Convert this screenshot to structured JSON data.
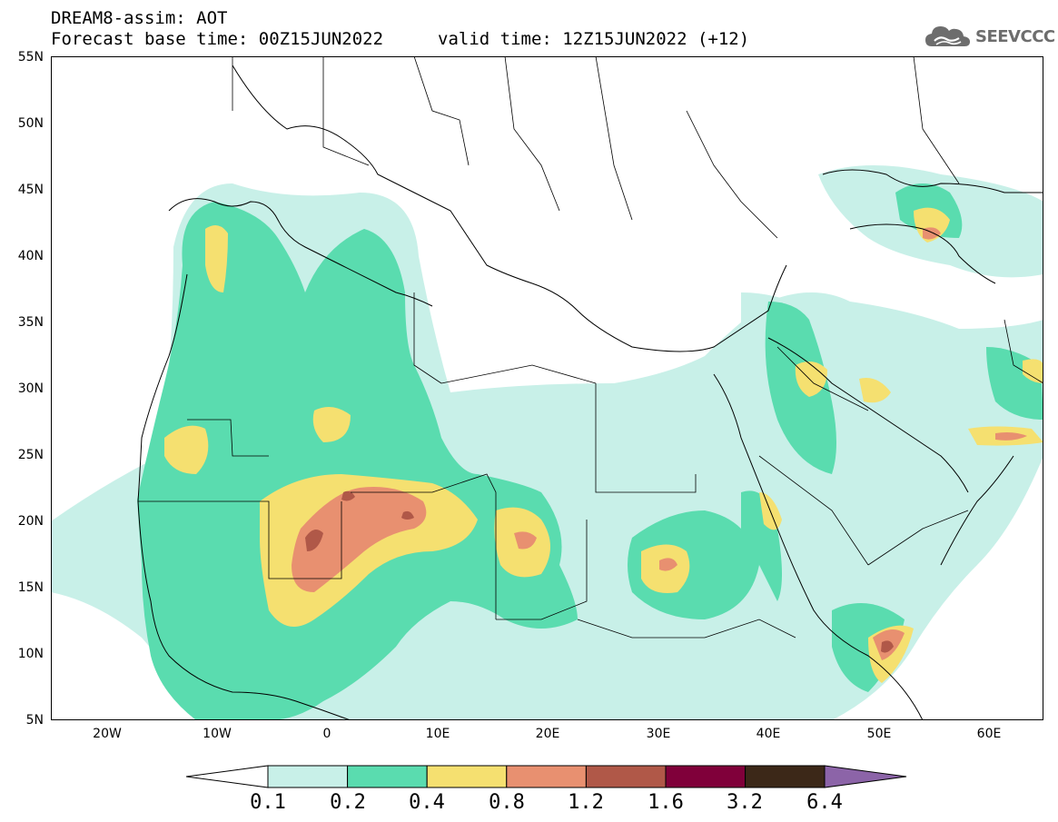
{
  "header": {
    "title": "DREAM8-assim: AOT",
    "base_time": "Forecast base time: 00Z15JUN2022",
    "valid_time": "valid time: 12Z15JUN2022 (+12)"
  },
  "logo": {
    "text": "SEEVCCC",
    "icon": "cloud-logo-icon",
    "color": "#6d6d6d"
  },
  "map": {
    "region": {
      "lon_min": -25,
      "lon_max": 65,
      "lat_min": 5,
      "lat_max": 55
    },
    "lat_ticks": [
      {
        "value": 55,
        "label": "55N"
      },
      {
        "value": 50,
        "label": "50N"
      },
      {
        "value": 45,
        "label": "45N"
      },
      {
        "value": 40,
        "label": "40N"
      },
      {
        "value": 35,
        "label": "35N"
      },
      {
        "value": 30,
        "label": "30N"
      },
      {
        "value": 25,
        "label": "25N"
      },
      {
        "value": 20,
        "label": "20N"
      },
      {
        "value": 15,
        "label": "15N"
      },
      {
        "value": 10,
        "label": "10N"
      },
      {
        "value": 5,
        "label": "5N"
      }
    ],
    "lon_ticks": [
      {
        "value": -20,
        "label": "20W"
      },
      {
        "value": -10,
        "label": "10W"
      },
      {
        "value": 0,
        "label": "0"
      },
      {
        "value": 10,
        "label": "10E"
      },
      {
        "value": 20,
        "label": "20E"
      },
      {
        "value": 30,
        "label": "30E"
      },
      {
        "value": 40,
        "label": "40E"
      },
      {
        "value": 50,
        "label": "50E"
      },
      {
        "value": 60,
        "label": "60E"
      }
    ]
  },
  "colorbar": {
    "labels": [
      "0.1",
      "0.2",
      "0.4",
      "0.8",
      "1.2",
      "1.6",
      "3.2",
      "6.4"
    ],
    "colors": [
      "#c8f0e8",
      "#5adcaf",
      "#f5e070",
      "#e89070",
      "#b05848",
      "#80003a",
      "#3c2818"
    ],
    "over_color": "#8c64a8",
    "under_color": "#ffffff"
  }
}
